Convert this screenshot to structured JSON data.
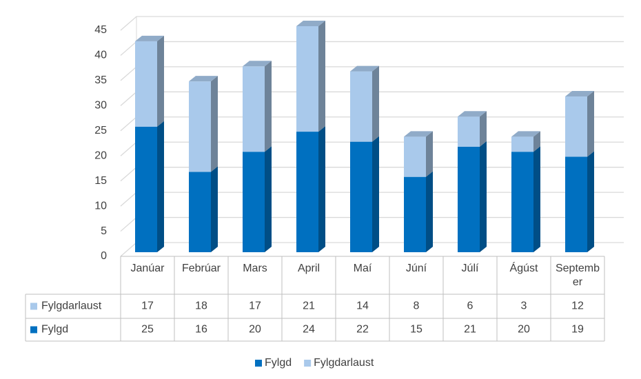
{
  "chart_data": {
    "type": "bar3d-stacked",
    "categories": [
      "Janúar",
      "Febrúar",
      "Mars",
      "April",
      "Maí",
      "Júní",
      "Júlí",
      "Ágúst",
      "September"
    ],
    "series": [
      {
        "name": "Fylgd",
        "color": "#0070c0",
        "values": [
          25,
          16,
          20,
          24,
          22,
          15,
          21,
          20,
          19
        ]
      },
      {
        "name": "Fylgdarlaust",
        "color": "#a9c9eb",
        "values": [
          17,
          18,
          17,
          21,
          14,
          8,
          6,
          3,
          12
        ]
      }
    ],
    "ylim": [
      0,
      45
    ],
    "yticks": [
      0,
      5,
      10,
      15,
      20,
      25,
      30,
      35,
      40,
      45
    ],
    "grid": true,
    "legend": "bottom",
    "data_table": true
  }
}
